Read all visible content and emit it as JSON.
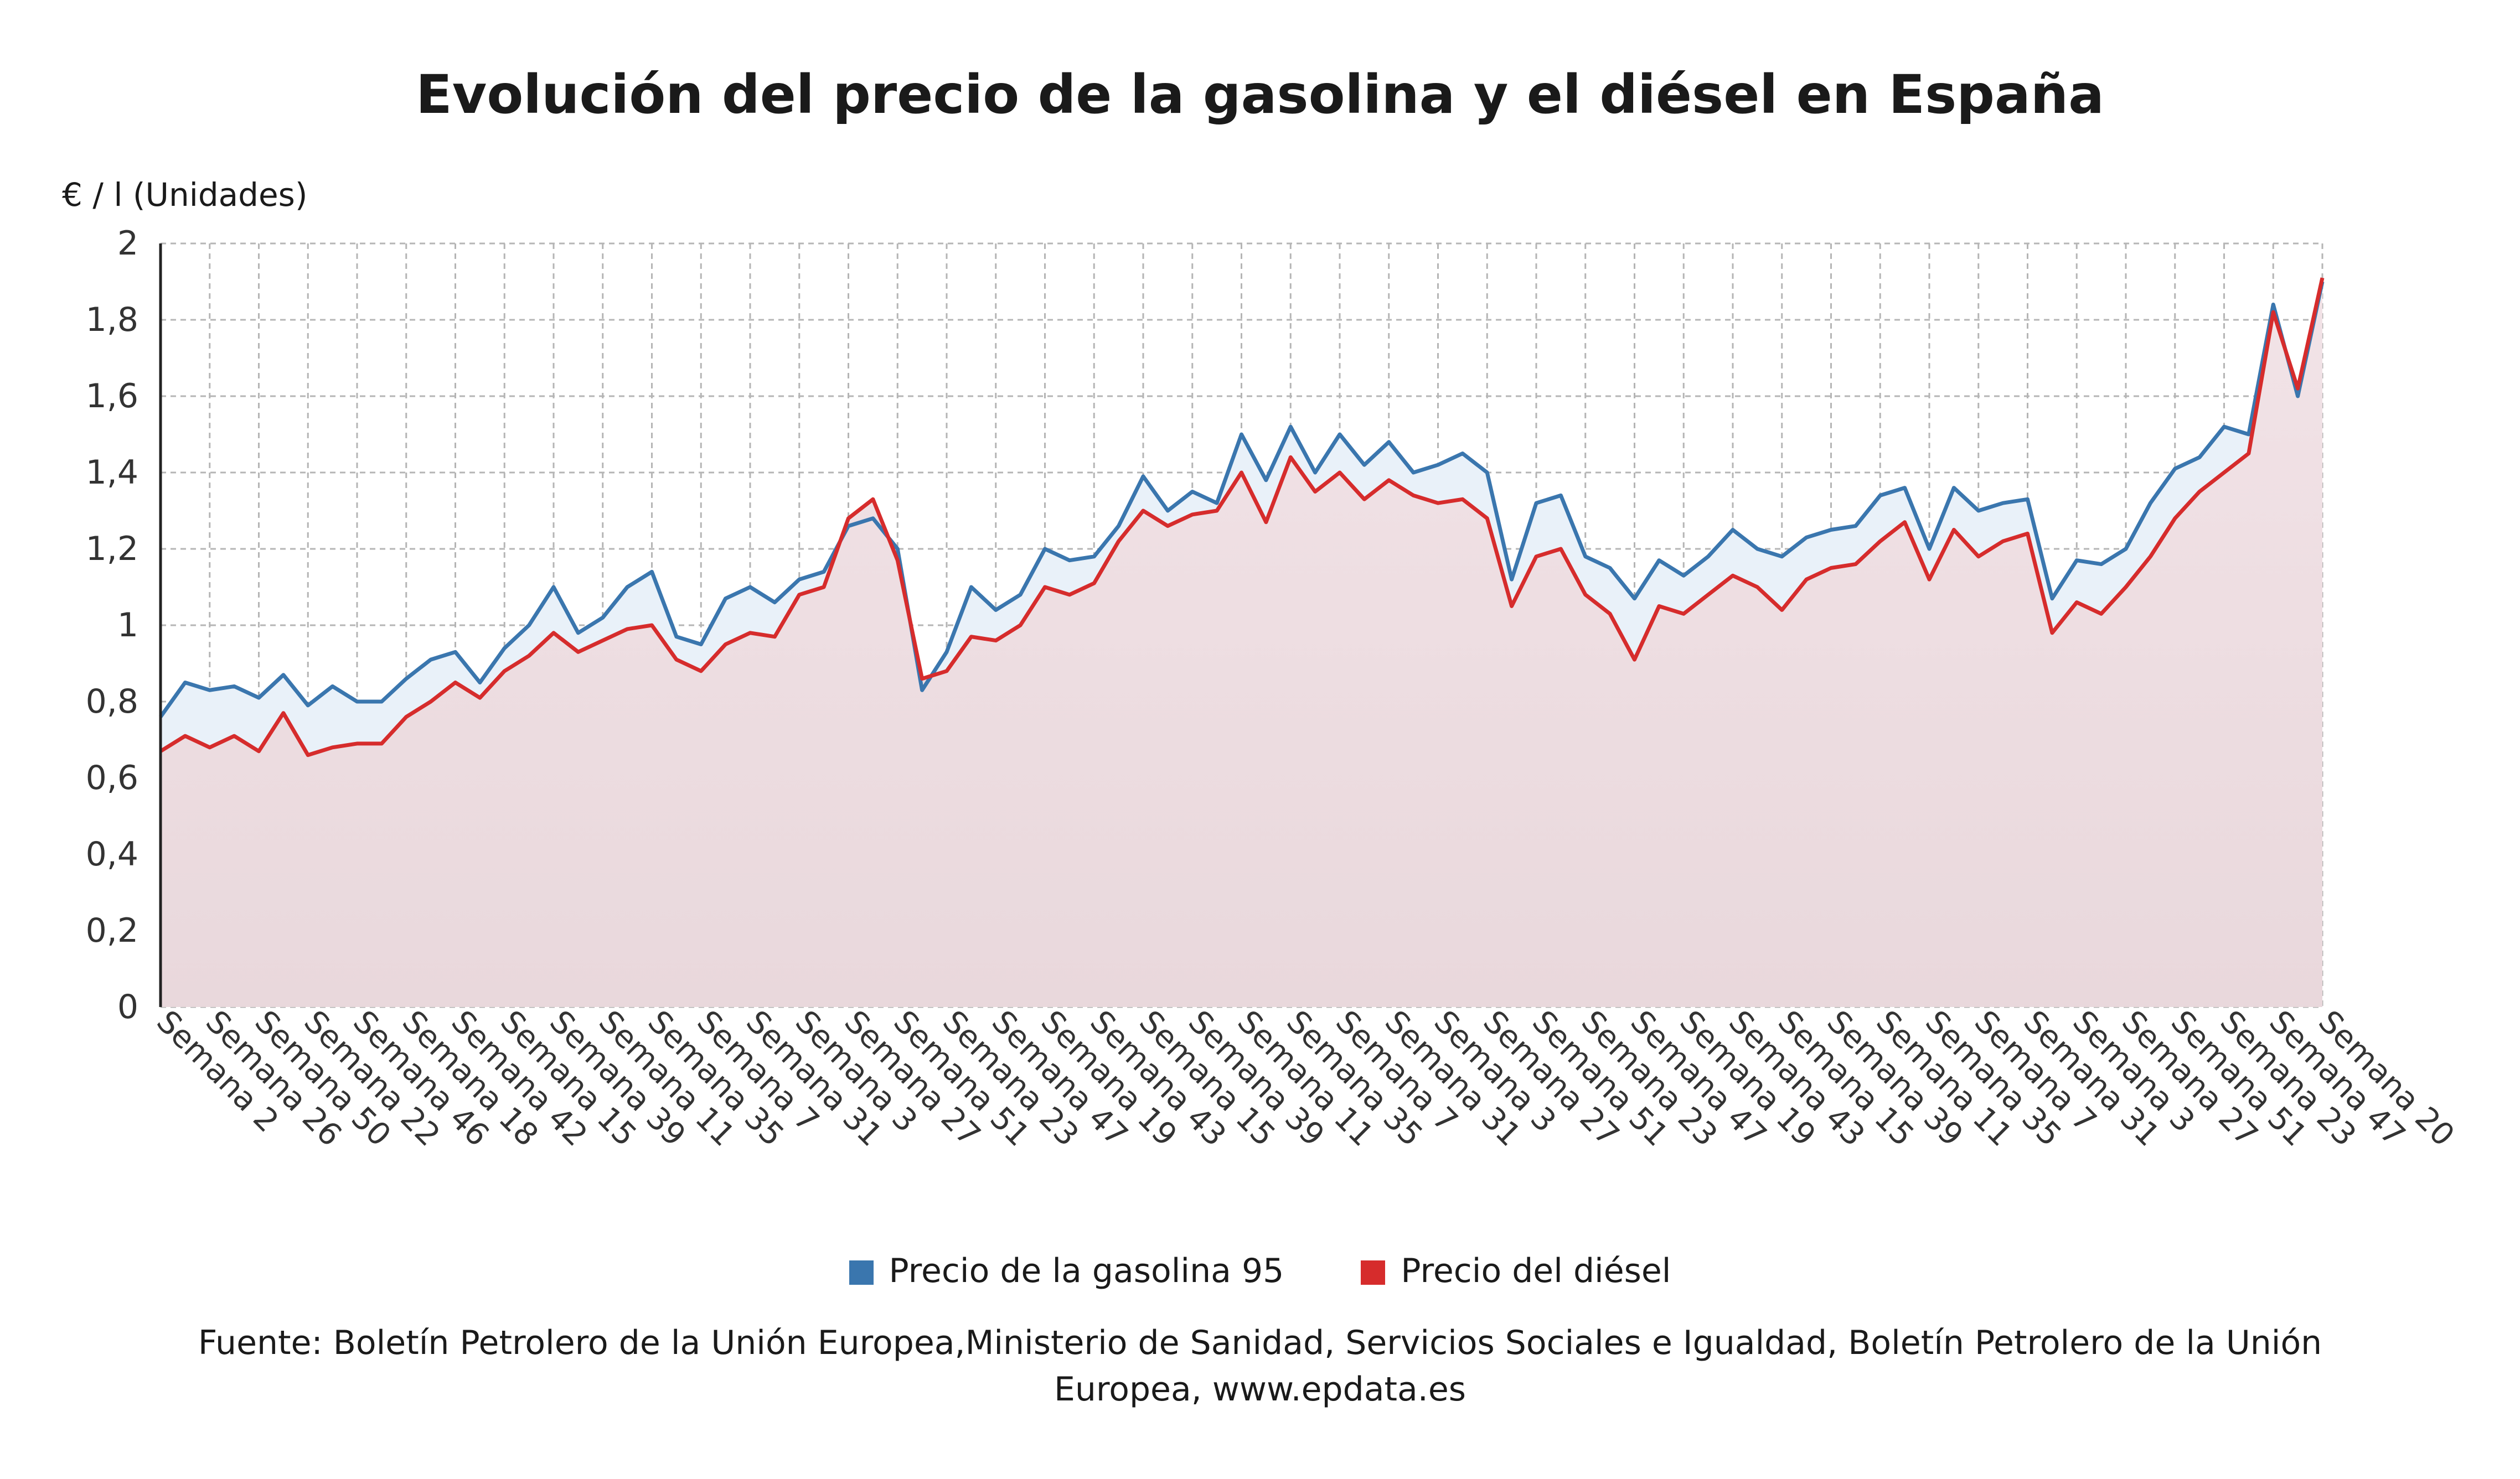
{
  "title": "Evolución del precio de la gasolina y el diésel en España",
  "unit_label": "€ / l (Unidades)",
  "legend": [
    {
      "label": "Precio de la gasolina 95",
      "color": "#3a76ae"
    },
    {
      "label": "Precio del diésel",
      "color": "#d62c2c"
    }
  ],
  "source": "Fuente: Boletín Petrolero de la Unión Europea,Ministerio de Sanidad, Servicios Sociales e Igualdad, Boletín Petrolero de la Unión Europea, www.epdata.es",
  "chart_data": {
    "type": "line",
    "title": "Evolución del precio de la gasolina y el diésel en España",
    "ylabel": "€ / l (Unidades)",
    "ylim": [
      0,
      2
    ],
    "yticks": [
      "0",
      "0,2",
      "0,4",
      "0,6",
      "0,8",
      "1",
      "1,2",
      "1,4",
      "1,6",
      "1,8",
      "2"
    ],
    "grid": true,
    "legend_position": "bottom",
    "x_tick_labels": [
      "Semana 2",
      "Semana 26",
      "Semana 50",
      "Semana 22",
      "Semana 46",
      "Semana 18",
      "Semana 42",
      "Semana 15",
      "Semana 39",
      "Semana 11",
      "Semana 35",
      "Semana 7",
      "Semana 31",
      "Semana 3",
      "Semana 27",
      "Semana 51",
      "Semana 23",
      "Semana 47",
      "Semana 19",
      "Semana 43",
      "Semana 15",
      "Semana 39",
      "Semana 11",
      "Semana 35",
      "Semana 7",
      "Semana 31",
      "Semana 3",
      "Semana 27",
      "Semana 51",
      "Semana 23",
      "Semana 47",
      "Semana 19",
      "Semana 43",
      "Semana 15",
      "Semana 39",
      "Semana 11",
      "Semana 35",
      "Semana 7",
      "Semana 31",
      "Semana 3",
      "Semana 27",
      "Semana 51",
      "Semana 23",
      "Semana 47",
      "Semana 20"
    ],
    "series": [
      {
        "name": "Precio de la gasolina 95",
        "color": "#3a76ae",
        "values": [
          0.76,
          0.85,
          0.83,
          0.84,
          0.81,
          0.87,
          0.79,
          0.84,
          0.8,
          0.8,
          0.86,
          0.91,
          0.93,
          0.85,
          0.94,
          1.0,
          1.1,
          0.98,
          1.02,
          1.1,
          1.14,
          0.97,
          0.95,
          1.07,
          1.1,
          1.06,
          1.12,
          1.14,
          1.26,
          1.28,
          1.2,
          0.83,
          0.93,
          1.1,
          1.04,
          1.08,
          1.2,
          1.17,
          1.18,
          1.26,
          1.39,
          1.3,
          1.35,
          1.32,
          1.5,
          1.38,
          1.52,
          1.4,
          1.5,
          1.42,
          1.48,
          1.4,
          1.42,
          1.45,
          1.4,
          1.12,
          1.32,
          1.34,
          1.18,
          1.15,
          1.07,
          1.17,
          1.13,
          1.18,
          1.25,
          1.2,
          1.18,
          1.23,
          1.25,
          1.26,
          1.34,
          1.36,
          1.2,
          1.36,
          1.3,
          1.32,
          1.33,
          1.07,
          1.17,
          1.16,
          1.2,
          1.32,
          1.41,
          1.44,
          1.52,
          1.5,
          1.84,
          1.6,
          1.9
        ]
      },
      {
        "name": "Precio del diésel",
        "color": "#d62c2c",
        "values": [
          0.67,
          0.71,
          0.68,
          0.71,
          0.67,
          0.77,
          0.66,
          0.68,
          0.69,
          0.69,
          0.76,
          0.8,
          0.85,
          0.81,
          0.88,
          0.92,
          0.98,
          0.93,
          0.96,
          0.99,
          1.0,
          0.91,
          0.88,
          0.95,
          0.98,
          0.97,
          1.08,
          1.1,
          1.28,
          1.33,
          1.17,
          0.86,
          0.88,
          0.97,
          0.96,
          1.0,
          1.1,
          1.08,
          1.11,
          1.22,
          1.3,
          1.26,
          1.29,
          1.3,
          1.4,
          1.27,
          1.44,
          1.35,
          1.4,
          1.33,
          1.38,
          1.34,
          1.32,
          1.33,
          1.28,
          1.05,
          1.18,
          1.2,
          1.08,
          1.03,
          0.91,
          1.05,
          1.03,
          1.08,
          1.13,
          1.1,
          1.04,
          1.12,
          1.15,
          1.16,
          1.22,
          1.27,
          1.12,
          1.25,
          1.18,
          1.22,
          1.24,
          0.98,
          1.06,
          1.03,
          1.1,
          1.18,
          1.28,
          1.35,
          1.4,
          1.45,
          1.82,
          1.62,
          1.91
        ]
      }
    ]
  }
}
